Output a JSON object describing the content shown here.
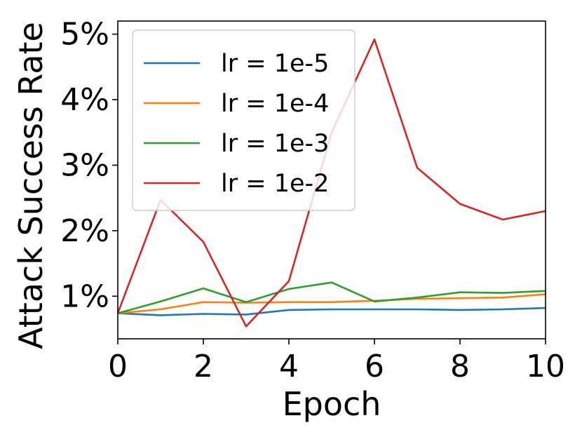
{
  "chart_data": {
    "type": "line",
    "xlabel": "Epoch",
    "ylabel": "Attack Success Rate",
    "xlim": [
      0,
      10
    ],
    "ylim": [
      0.35,
      5.2
    ],
    "x_ticks": [
      0,
      2,
      4,
      6,
      8,
      10
    ],
    "x_tick_labels": [
      "0",
      "2",
      "4",
      "6",
      "8",
      "10"
    ],
    "y_ticks": [
      1,
      2,
      3,
      4,
      5
    ],
    "y_tick_labels": [
      "1%",
      "2%",
      "3%",
      "4%",
      "5%"
    ],
    "grid": false,
    "legend_position": "top-left",
    "x": [
      0,
      1,
      2,
      3,
      4,
      5,
      6,
      7,
      8,
      9,
      10
    ],
    "series": [
      {
        "name": "lr = 1e-5",
        "color": "#1f77b4",
        "values": [
          0.74,
          0.71,
          0.73,
          0.72,
          0.79,
          0.8,
          0.8,
          0.8,
          0.79,
          0.8,
          0.82
        ]
      },
      {
        "name": "lr = 1e-4",
        "color": "#ff7f0e",
        "values": [
          0.74,
          0.8,
          0.91,
          0.9,
          0.91,
          0.91,
          0.93,
          0.96,
          0.97,
          0.98,
          1.03
        ]
      },
      {
        "name": "lr = 1e-3",
        "color": "#2ca02c",
        "values": [
          0.74,
          0.92,
          1.12,
          0.91,
          1.11,
          1.21,
          0.92,
          0.98,
          1.06,
          1.05,
          1.08
        ]
      },
      {
        "name": "lr = 1e-2",
        "color": "#d62728",
        "values": [
          0.74,
          2.47,
          1.83,
          0.54,
          1.23,
          3.5,
          4.92,
          2.96,
          2.41,
          2.17,
          2.3
        ]
      }
    ]
  }
}
